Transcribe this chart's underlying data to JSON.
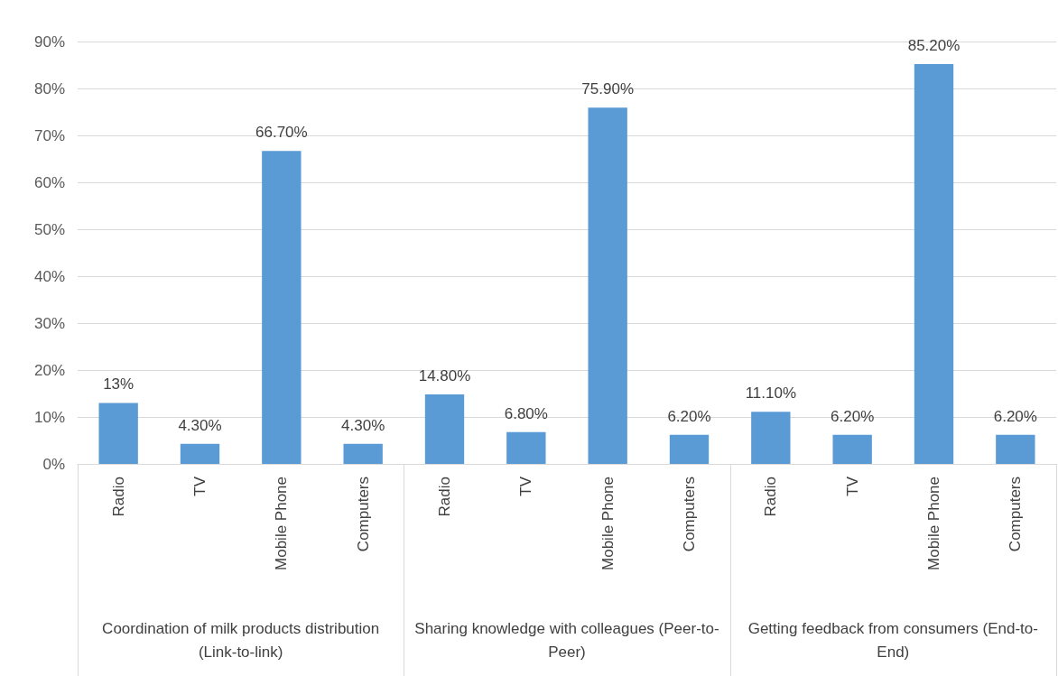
{
  "chart_data": {
    "type": "bar",
    "categories": [
      "Radio",
      "TV",
      "Mobile Phone",
      "Computers",
      "Radio",
      "TV",
      "Mobile Phone",
      "Computers",
      "Radio",
      "TV",
      "Mobile Phone",
      "Computers"
    ],
    "values": [
      13,
      4.3,
      66.7,
      4.3,
      14.8,
      6.8,
      75.9,
      6.2,
      11.1,
      6.2,
      85.2,
      6.2
    ],
    "value_labels": [
      "13%",
      "4.30%",
      "66.70%",
      "4.30%",
      "14.80%",
      "6.80%",
      "75.90%",
      "6.20%",
      "11.10%",
      "6.20%",
      "85.20%",
      "6.20%"
    ],
    "color": "#5b9bd5",
    "ylim": [
      0,
      90
    ],
    "yticks": [
      {
        "value": 0,
        "label": "0%"
      },
      {
        "value": 10,
        "label": "10%"
      },
      {
        "value": 20,
        "label": "20%"
      },
      {
        "value": 30,
        "label": "30%"
      },
      {
        "value": 40,
        "label": "40%"
      },
      {
        "value": 50,
        "label": "50%"
      },
      {
        "value": 60,
        "label": "60%"
      },
      {
        "value": 70,
        "label": "70%"
      },
      {
        "value": 80,
        "label": "80%"
      },
      {
        "value": 90,
        "label": "90%"
      }
    ],
    "grid": "y",
    "annotations": [
      "Coordination of milk products distribution (Link-to-link)",
      "Sharing knowledge with colleagues (Peer-to-Peer)",
      "Getting feedback from consumers (End-to-End)"
    ]
  }
}
